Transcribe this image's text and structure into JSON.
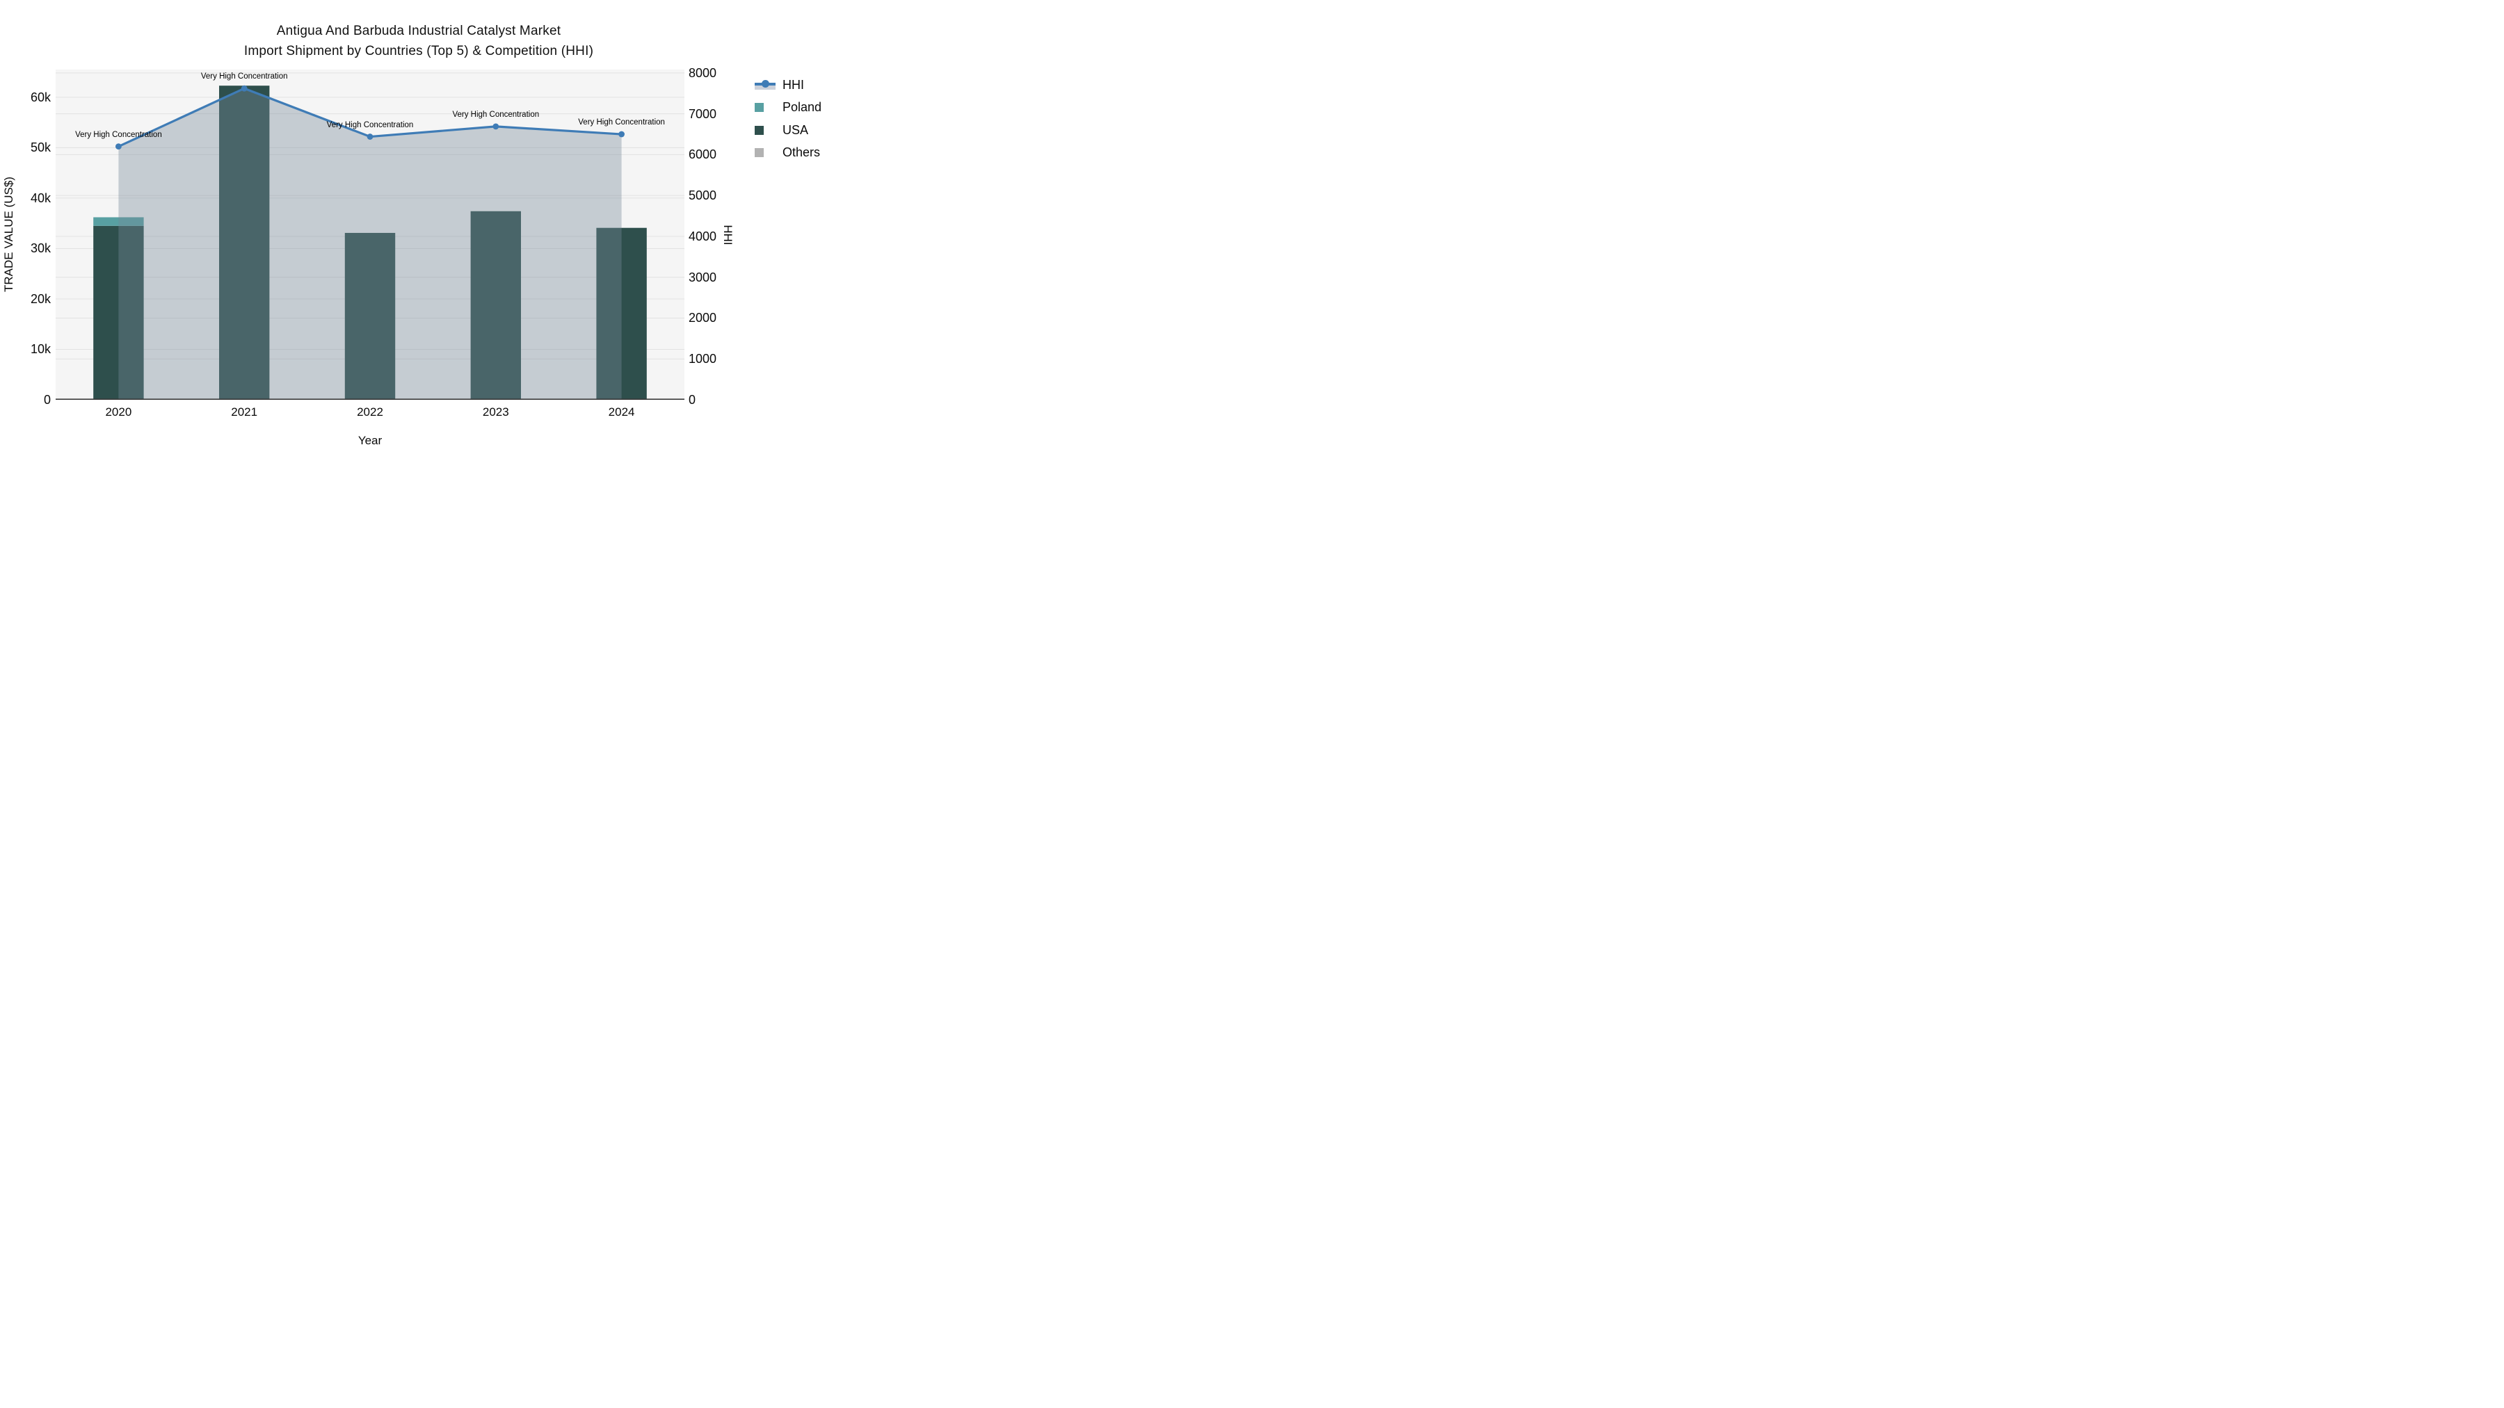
{
  "title": {
    "line1": "Antigua And Barbuda Industrial Catalyst Market",
    "line2": "Import Shipment by Countries (Top 5) & Competition (HHI)"
  },
  "colors": {
    "plot_bg": "#f5f5f5",
    "gridline": "#e2e2e2",
    "axis_line": "#3b3b3b",
    "hhi_line": "#3f7cb6",
    "hhi_fill": "rgba(119,136,153,0.38)",
    "hhi_legend_band": "#ccd1da",
    "poland": "#58a0a2",
    "usa": "#2e4f4c",
    "others": "#b2b2b2"
  },
  "legend": {
    "items": [
      {
        "label": "HHI",
        "type": "line",
        "color": "#3f7cb6",
        "band": "#ccd1da"
      },
      {
        "label": "Poland",
        "type": "swatch",
        "color": "#58a0a2"
      },
      {
        "label": "USA",
        "type": "swatch",
        "color": "#2e4f4c"
      },
      {
        "label": "Others",
        "type": "swatch",
        "color": "#b2b2b2"
      }
    ]
  },
  "chart_data": {
    "type": "bar+line",
    "categories": [
      "2020",
      "2021",
      "2022",
      "2023",
      "2024"
    ],
    "bars_stack_bottom_to_top": [
      {
        "name": "USA",
        "color": "#2e4f4c",
        "values": [
          34500,
          62300,
          33100,
          37400,
          34100
        ]
      },
      {
        "name": "Poland",
        "color": "#58a0a2",
        "values": [
          1700,
          0,
          0,
          0,
          0
        ]
      },
      {
        "name": "Others",
        "color": "#b2b2b2",
        "values": [
          0,
          0,
          0,
          0,
          0
        ]
      }
    ],
    "line_series": {
      "name": "HHI",
      "axis": "right",
      "color": "#3f7cb6",
      "fill": "rgba(119,136,153,0.38)",
      "values": [
        6200,
        7620,
        6440,
        6690,
        6500
      ]
    },
    "annotations": [
      "Very High Concentration",
      "Very High Concentration",
      "Very High Concentration",
      "Very High Concentration",
      "Very High Concentration"
    ],
    "x_axis": {
      "title": "Year",
      "labels": [
        "2020",
        "2021",
        "2022",
        "2023",
        "2024"
      ]
    },
    "y_left": {
      "title": "TRADE VALUE (US$)",
      "range": [
        0,
        65500
      ],
      "ticks": [
        {
          "value": 0,
          "label": "0"
        },
        {
          "value": 10000,
          "label": "10k"
        },
        {
          "value": 20000,
          "label": "20k"
        },
        {
          "value": 30000,
          "label": "30k"
        },
        {
          "value": 40000,
          "label": "40k"
        },
        {
          "value": 50000,
          "label": "50k"
        },
        {
          "value": 60000,
          "label": "60k"
        }
      ]
    },
    "y_right": {
      "title": "HHI",
      "range": [
        0,
        8083
      ],
      "ticks": [
        {
          "value": 0,
          "label": "0"
        },
        {
          "value": 1000,
          "label": "1000"
        },
        {
          "value": 2000,
          "label": "2000"
        },
        {
          "value": 3000,
          "label": "3000"
        },
        {
          "value": 4000,
          "label": "4000"
        },
        {
          "value": 5000,
          "label": "5000"
        },
        {
          "value": 6000,
          "label": "6000"
        },
        {
          "value": 7000,
          "label": "7000"
        },
        {
          "value": 8000,
          "label": "8000"
        }
      ]
    },
    "grid": true,
    "legend_position": "right"
  }
}
